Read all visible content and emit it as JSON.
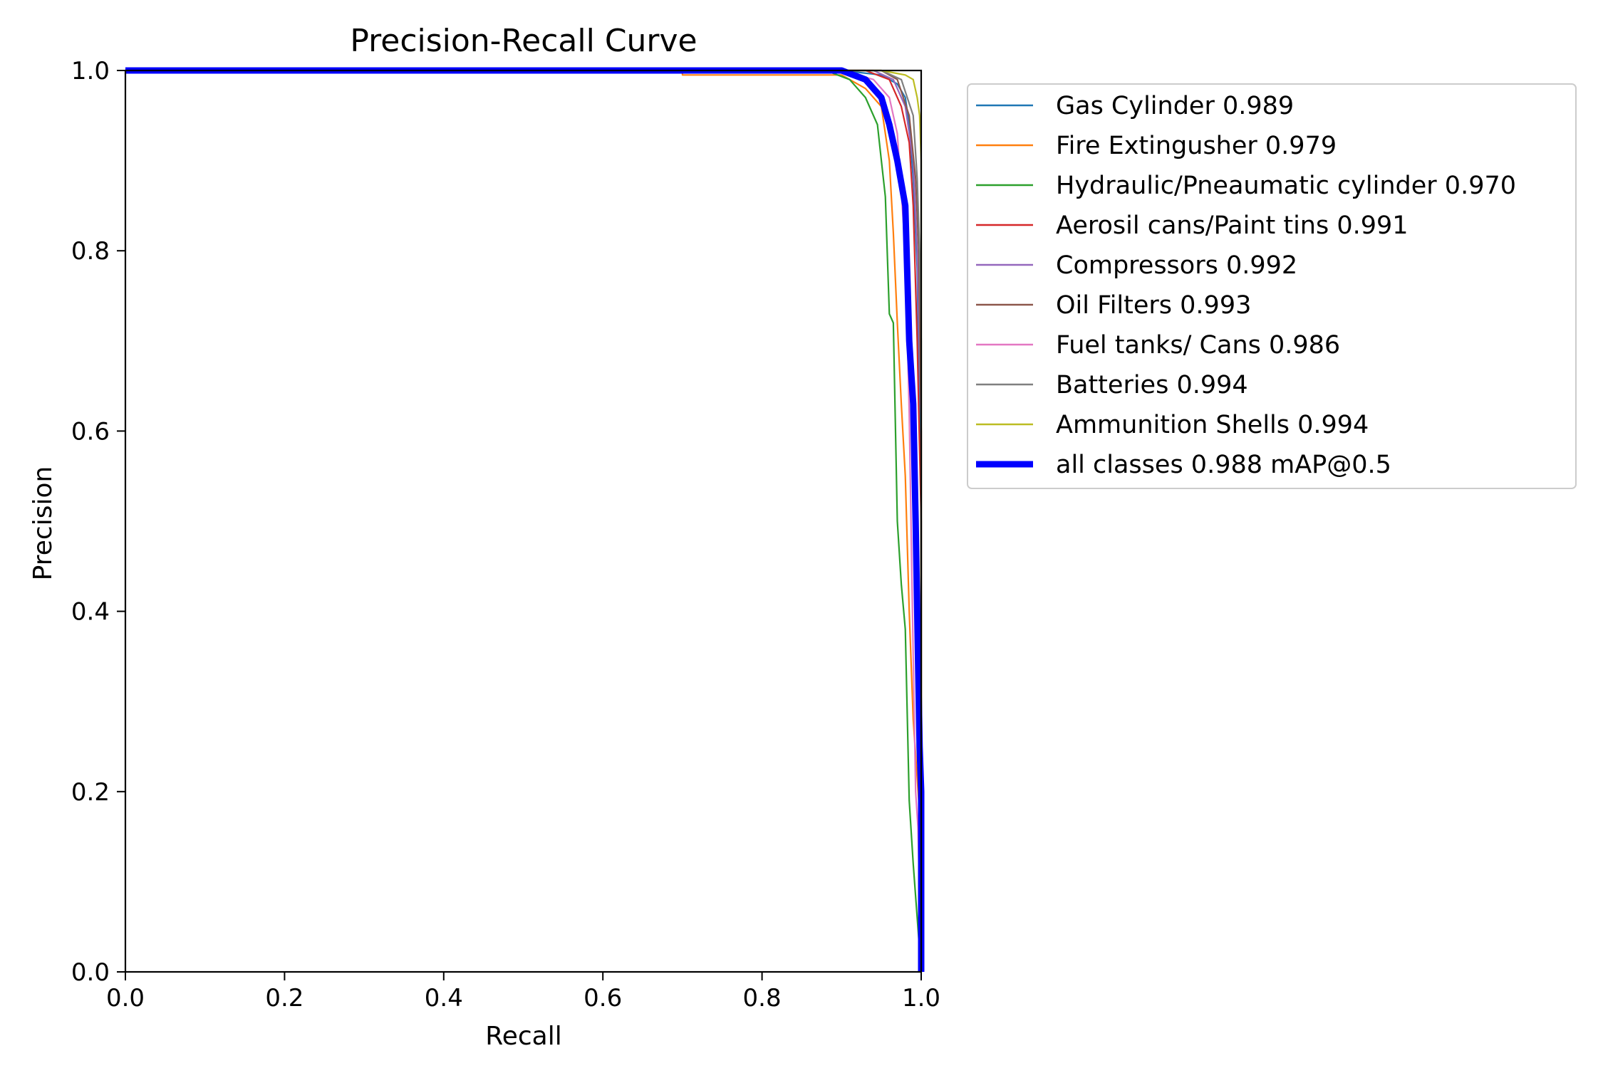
{
  "chart_data": {
    "type": "line",
    "title": "Precision-Recall Curve",
    "xlabel": "Recall",
    "ylabel": "Precision",
    "xlim": [
      0,
      1
    ],
    "ylim": [
      0,
      1
    ],
    "xticks": [
      "0.0",
      "0.2",
      "0.4",
      "0.6",
      "0.8",
      "1.0"
    ],
    "yticks": [
      "0.0",
      "0.2",
      "0.4",
      "0.6",
      "0.8",
      "1.0"
    ],
    "grid": false,
    "legend_position": "outside right",
    "series": [
      {
        "name": "Gas Cylinder 0.989",
        "color": "#1f77b4",
        "x": [
          0,
          0.9,
          0.95,
          0.97,
          0.98,
          0.985,
          0.99,
          0.995,
          1.0,
          1.0
        ],
        "y": [
          1,
          1,
          0.995,
          0.985,
          0.97,
          0.94,
          0.88,
          0.78,
          0.5,
          0
        ]
      },
      {
        "name": "Fire Extingusher 0.979",
        "color": "#ff7f0e",
        "x": [
          0,
          0.7,
          0.7,
          0.9,
          0.93,
          0.95,
          0.96,
          0.965,
          0.97,
          0.975,
          0.98,
          0.985,
          0.99,
          1.0,
          1.0
        ],
        "y": [
          1,
          1,
          0.995,
          0.995,
          0.98,
          0.96,
          0.9,
          0.82,
          0.72,
          0.63,
          0.55,
          0.4,
          0.28,
          0.15,
          0
        ]
      },
      {
        "name": "Hydraulic/Pneaumatic cylinder 0.970",
        "color": "#2ca02c",
        "x": [
          0,
          0.88,
          0.91,
          0.93,
          0.945,
          0.95,
          0.955,
          0.96,
          0.965,
          0.97,
          0.975,
          0.98,
          0.985,
          0.99,
          1.0
        ],
        "y": [
          1,
          1,
          0.99,
          0.97,
          0.94,
          0.9,
          0.86,
          0.73,
          0.72,
          0.5,
          0.43,
          0.38,
          0.19,
          0.12,
          0
        ]
      },
      {
        "name": "Aerosil cans/Paint tins 0.991",
        "color": "#d62728",
        "x": [
          0,
          0.93,
          0.96,
          0.975,
          0.985,
          0.99,
          0.995,
          1.0,
          1.0
        ],
        "y": [
          1,
          1,
          0.99,
          0.96,
          0.92,
          0.85,
          0.7,
          0.5,
          0
        ]
      },
      {
        "name": "Compressors 0.992",
        "color": "#9467bd",
        "x": [
          0,
          0.94,
          0.965,
          0.98,
          0.99,
          0.995,
          1.0,
          1.0
        ],
        "y": [
          1,
          1,
          0.99,
          0.96,
          0.9,
          0.8,
          0.6,
          0
        ]
      },
      {
        "name": "Oil Filters 0.993",
        "color": "#8c564b",
        "x": [
          0,
          0.95,
          0.97,
          0.985,
          0.993,
          0.997,
          1.0,
          1.0
        ],
        "y": [
          1,
          1,
          0.99,
          0.95,
          0.88,
          0.8,
          0.6,
          0
        ]
      },
      {
        "name": "Fuel tanks/ Cans 0.986",
        "color": "#e377c2",
        "x": [
          0,
          0.9,
          0.94,
          0.96,
          0.97,
          0.98,
          0.985,
          0.99,
          0.993,
          0.996,
          1.0
        ],
        "y": [
          1,
          1,
          0.99,
          0.97,
          0.93,
          0.8,
          0.62,
          0.35,
          0.2,
          0.16,
          0
        ]
      },
      {
        "name": "Batteries 0.994",
        "color": "#7f7f7f",
        "x": [
          0,
          0.95,
          0.975,
          0.99,
          0.995,
          0.998,
          1.0,
          1.0
        ],
        "y": [
          1,
          1,
          0.99,
          0.95,
          0.88,
          0.8,
          0.7,
          0
        ]
      },
      {
        "name": "Ammunition Shells 0.994",
        "color": "#bcbd22",
        "x": [
          0,
          0.95,
          0.98,
          0.99,
          0.995,
          0.998,
          1.0,
          1.0
        ],
        "y": [
          1,
          1,
          0.995,
          0.99,
          0.97,
          0.95,
          0.9,
          0
        ]
      },
      {
        "name": "all classes 0.988 mAP@0.5",
        "color": "#0000ff",
        "bold": true,
        "x": [
          0,
          0.9,
          0.93,
          0.95,
          0.96,
          0.97,
          0.98,
          0.985,
          0.99,
          0.993,
          0.996,
          0.998,
          1.0,
          1.0
        ],
        "y": [
          1,
          1,
          0.99,
          0.97,
          0.94,
          0.9,
          0.85,
          0.7,
          0.63,
          0.5,
          0.35,
          0.25,
          0.2,
          0
        ]
      }
    ]
  }
}
